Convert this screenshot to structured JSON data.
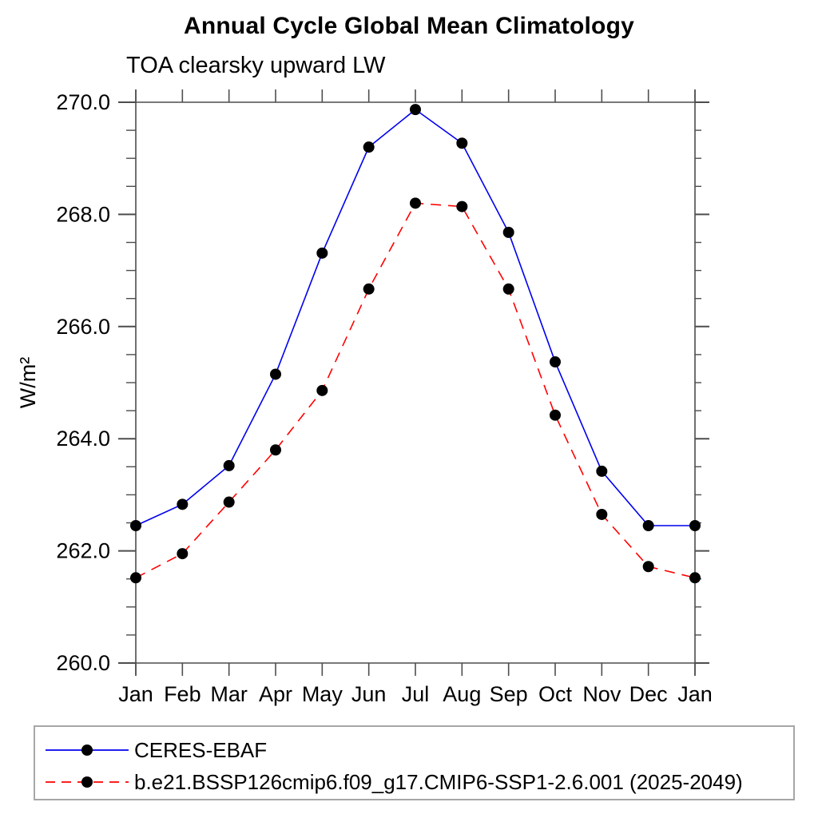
{
  "title": "Annual Cycle Global Mean Climatology",
  "chart_data": {
    "type": "line",
    "title": "Annual Cycle Global Mean Climatology",
    "subtitle": "TOA clearsky upward LW",
    "ylabel": "W/m²",
    "x_categories": [
      "Jan",
      "Feb",
      "Mar",
      "Apr",
      "May",
      "Jun",
      "Jul",
      "Aug",
      "Sep",
      "Oct",
      "Nov",
      "Dec",
      "Jan"
    ],
    "ylim": [
      260.0,
      270.0
    ],
    "y_major_ticks": [
      260,
      262,
      264,
      266,
      268,
      270
    ],
    "y_tick_labels": [
      "260.0",
      "262.0",
      "264.0",
      "266.0",
      "268.0",
      "270.0"
    ],
    "y_minor_tick_step": 0.5,
    "grid": false,
    "legend_position": "bottom",
    "axis_color": "#4d4d4d",
    "text_color": "#000000",
    "legend_border_color": "#a6a6a6",
    "series": [
      {
        "name": "CERES-EBAF",
        "color": "#0000ee",
        "line_style": "solid",
        "marker": "filled-circle",
        "marker_color": "#000000",
        "values": [
          262.45,
          262.83,
          263.52,
          265.15,
          267.31,
          269.2,
          269.87,
          269.27,
          267.68,
          265.37,
          263.42,
          262.45,
          262.45
        ]
      },
      {
        "name": "b.e21.BSSP126cmip6.f09_g17.CMIP6-SSP1-2.6.001 (2025-2049)",
        "color": "#ff0000",
        "line_style": "dashed",
        "marker": "filled-circle",
        "marker_color": "#000000",
        "values": [
          261.52,
          261.95,
          262.87,
          263.8,
          264.86,
          266.67,
          268.2,
          268.14,
          266.67,
          264.42,
          262.65,
          261.72,
          261.52
        ]
      }
    ]
  }
}
